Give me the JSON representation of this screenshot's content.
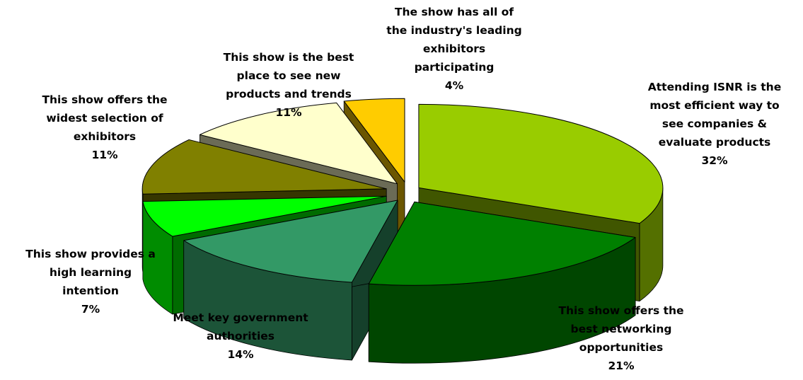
{
  "chart_data": {
    "type": "pie",
    "title": "",
    "style": "3d-exploded",
    "legend": "none",
    "slices": [
      {
        "label_lines": [
          "Attending ISNR is the",
          "most efficient way to",
          "see companies &",
          "evaluate products"
        ],
        "value": 32,
        "value_label": "32%",
        "color": "#99CC00"
      },
      {
        "label_lines": [
          "This show offers the",
          "best networking",
          "opportunities"
        ],
        "value": 21,
        "value_label": "21%",
        "color": "#008000"
      },
      {
        "label_lines": [
          "Meet key government",
          "authorities"
        ],
        "value": 14,
        "value_label": "14%",
        "color": "#339966"
      },
      {
        "label_lines": [
          "This show provides a",
          "high learning",
          "intention"
        ],
        "value": 7,
        "value_label": "7%",
        "color": "#00FF00"
      },
      {
        "label_lines": [
          "This show offers the",
          "widest selection of",
          "exhibitors"
        ],
        "value": 11,
        "value_label": "11%",
        "color": "#808000"
      },
      {
        "label_lines": [
          "This show is the best",
          "place to see new",
          "products and trends"
        ],
        "value": 11,
        "value_label": "11%",
        "color": "#FFFFCC"
      },
      {
        "label_lines": [
          "The show has all of",
          "the industry's leading",
          "exhibitors",
          "participating"
        ],
        "value": 4,
        "value_label": "4%",
        "color": "#FFCC00"
      }
    ]
  }
}
